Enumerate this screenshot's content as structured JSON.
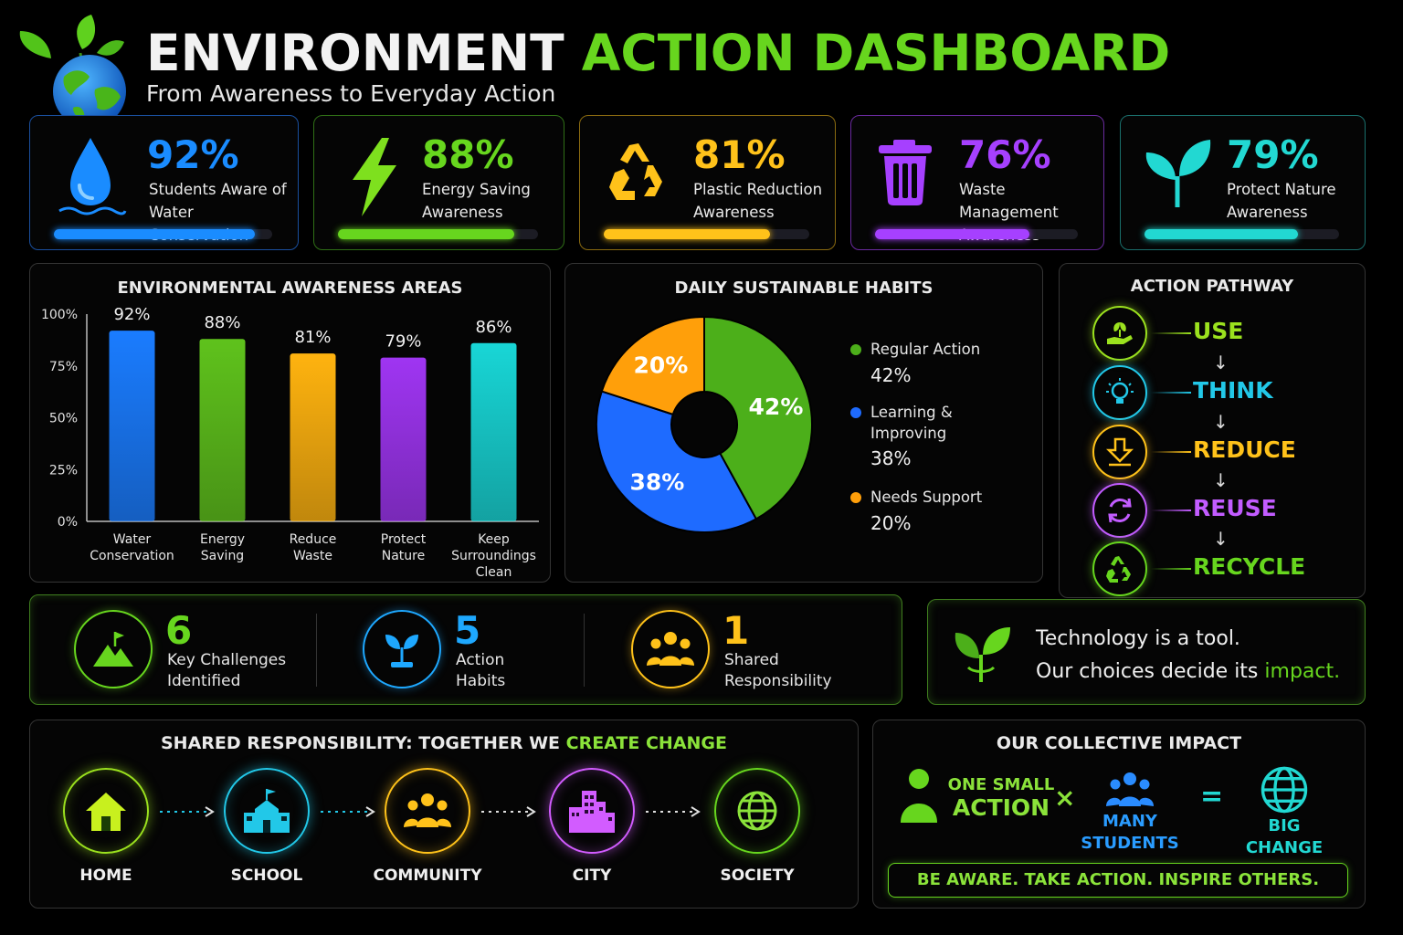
{
  "header": {
    "title_part1": "ENVIRONMENT",
    "title_part2": "ACTION DASHBOARD",
    "subtitle": "From Awareness to Everyday Action",
    "logo_icon": "earth-with-leaves-icon"
  },
  "stat_cards": [
    {
      "percent": "92%",
      "label_line1": "Students Aware of",
      "label_line2": "Water Conservation",
      "progress": 0.92,
      "color": "#1a8cff",
      "icon": "water-drop-icon"
    },
    {
      "percent": "88%",
      "label_line1": "Energy Saving",
      "label_line2": "Awareness",
      "progress": 0.88,
      "color": "#67d61e",
      "icon": "lightning-bolt-icon"
    },
    {
      "percent": "81%",
      "label_line1": "Plastic Reduction",
      "label_line2": "Awareness",
      "progress": 0.81,
      "color": "#ffc21a",
      "icon": "recycle-icon"
    },
    {
      "percent": "76%",
      "label_line1": "Waste Management",
      "label_line2": "Awareness",
      "progress": 0.76,
      "color": "#a640ff",
      "icon": "trash-bin-icon"
    },
    {
      "percent": "79%",
      "label_line1": "Protect Nature",
      "label_line2": "Awareness",
      "progress": 0.79,
      "color": "#22d8d2",
      "icon": "sprout-icon"
    }
  ],
  "awareness_chart_title": "ENVIRONMENTAL AWARENESS AREAS",
  "habits_chart_title": "DAILY SUSTAINABLE HABITS",
  "chart_data": [
    {
      "type": "bar",
      "title": "ENVIRONMENTAL AWARENESS AREAS",
      "categories": [
        "Water Conservation",
        "Energy Saving",
        "Reduce Waste",
        "Protect Nature",
        "Keep Surroundings Clean"
      ],
      "category_lines": [
        [
          "Water",
          "Conservation"
        ],
        [
          "Energy",
          "Saving"
        ],
        [
          "Reduce",
          "Waste"
        ],
        [
          "Protect",
          "Nature"
        ],
        [
          "Keep",
          "Surroundings",
          "Clean"
        ]
      ],
      "values": [
        92,
        88,
        81,
        79,
        86
      ],
      "value_labels": [
        "92%",
        "88%",
        "81%",
        "79%",
        "86%"
      ],
      "colors": [
        "#1a7cff",
        "#5fc21c",
        "#ffb30f",
        "#9f35f2",
        "#18d6d6"
      ],
      "yticks": [
        "100%",
        "75%",
        "50%",
        "25%",
        "0%"
      ],
      "ylim": [
        0,
        100
      ],
      "grid": false
    },
    {
      "type": "pie",
      "title": "DAILY SUSTAINABLE HABITS",
      "labels": [
        "Regular Action",
        "Learning & Improving",
        "Needs Support"
      ],
      "values": [
        42,
        38,
        20
      ],
      "value_labels": [
        "42%",
        "38%",
        "20%"
      ],
      "colors": [
        "#4caf1a",
        "#1e6bff",
        "#ff9f0a"
      ],
      "donut": true,
      "legend_position": "right"
    }
  ],
  "habits_legend": [
    {
      "name_line1": "Regular Action",
      "name_line2": "",
      "value": "42%",
      "color": "#4caf1a"
    },
    {
      "name_line1": "Learning &",
      "name_line2": "Improving",
      "value": "38%",
      "color": "#1e6bff"
    },
    {
      "name_line1": "Needs Support",
      "name_line2": "",
      "value": "20%",
      "color": "#ff9f0a"
    }
  ],
  "pathway": {
    "title": "ACTION PATHWAY",
    "steps": [
      {
        "word": "USE",
        "color": "#9be11e",
        "icon": "hand-with-plant-icon"
      },
      {
        "word": "THINK",
        "color": "#22c8e8",
        "icon": "lightbulb-icon"
      },
      {
        "word": "REDUCE",
        "color": "#ffc21a",
        "icon": "reduce-arrow-icon"
      },
      {
        "word": "REUSE",
        "color": "#c25cff",
        "icon": "reuse-arrows-icon"
      },
      {
        "word": "RECYCLE",
        "color": "#67d61e",
        "icon": "recycle-icon"
      }
    ],
    "arrow": "↓"
  },
  "key_stats": [
    {
      "number": "6",
      "label_line1": "Key Challenges",
      "label_line2": "Identified",
      "color": "#67d61e",
      "icon": "mountain-flag-icon"
    },
    {
      "number": "5",
      "label_line1": "Action",
      "label_line2": "Habits",
      "color": "#1ea8ff",
      "icon": "plant-icon"
    },
    {
      "number": "1",
      "label_line1": "Shared",
      "label_line2": "Responsibility",
      "color": "#ffc21a",
      "icon": "people-group-icon"
    }
  ],
  "quote": {
    "line1": "Technology is a tool.",
    "line2_start": "Our choices decide its",
    "line2_highlight": "impact.",
    "icon": "sprout-icon"
  },
  "shared_responsibility": {
    "title_start": "SHARED RESPONSIBILITY: TOGETHER WE",
    "title_highlight": "CREATE CHANGE",
    "steps": [
      {
        "label": "HOME",
        "color": "#9be11e",
        "icon": "home-icon"
      },
      {
        "label": "SCHOOL",
        "color": "#22c8e8",
        "icon": "school-icon"
      },
      {
        "label": "COMMUNITY",
        "color": "#ffc21a",
        "icon": "people-group-icon"
      },
      {
        "label": "CITY",
        "color": "#d25cff",
        "icon": "city-buildings-icon"
      },
      {
        "label": "SOCIETY",
        "color": "#67d61e",
        "icon": "globe-icon"
      }
    ]
  },
  "collective_impact": {
    "title": "OUR COLLECTIVE IMPACT",
    "part1_line1": "ONE SMALL",
    "part1_line2": "ACTION",
    "times": "×",
    "part2_line1": "MANY",
    "part2_line2": "STUDENTS",
    "equals": "=",
    "part3_line1": "BIG",
    "part3_line2": "CHANGE",
    "banner": "BE AWARE. TAKE ACTION. INSPIRE OTHERS."
  }
}
